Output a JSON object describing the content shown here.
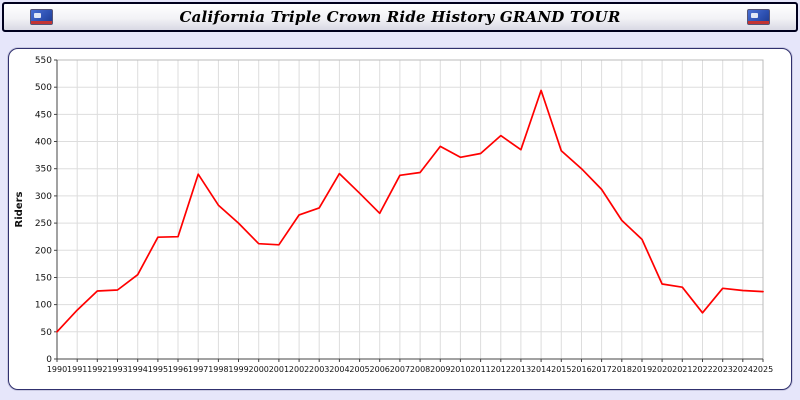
{
  "header": {
    "title": "California Triple Crown Ride History GRAND TOUR"
  },
  "colors": {
    "page_bg": "#e6e6fa",
    "panel_border": "#30306e",
    "header_border": "#00001e",
    "line": "#ff0000",
    "grid": "#dddddd",
    "axis": "#444444"
  },
  "chart_data": {
    "type": "line",
    "title": "California Triple Crown Ride History GRAND TOUR",
    "xlabel": "",
    "ylabel": "Riders",
    "ylim": [
      0,
      550
    ],
    "y_tick_step": 50,
    "grid": true,
    "legend": "none",
    "x": [
      1990,
      1991,
      1992,
      1993,
      1994,
      1995,
      1996,
      1997,
      1998,
      1999,
      2000,
      2001,
      2002,
      2003,
      2004,
      2005,
      2006,
      2007,
      2008,
      2009,
      2010,
      2011,
      2012,
      2013,
      2014,
      2015,
      2016,
      2017,
      2018,
      2019,
      2020,
      2021,
      2022,
      2023,
      2024,
      2025
    ],
    "series": [
      {
        "name": "Riders",
        "color": "#ff0000",
        "values": [
          50,
          90,
          125,
          127,
          155,
          224,
          225,
          340,
          283,
          250,
          212,
          210,
          265,
          278,
          341,
          305,
          268,
          338,
          343,
          391,
          371,
          378,
          411,
          385,
          494,
          383,
          350,
          312,
          255,
          220,
          138,
          132,
          85,
          130,
          126,
          124
        ]
      }
    ]
  }
}
